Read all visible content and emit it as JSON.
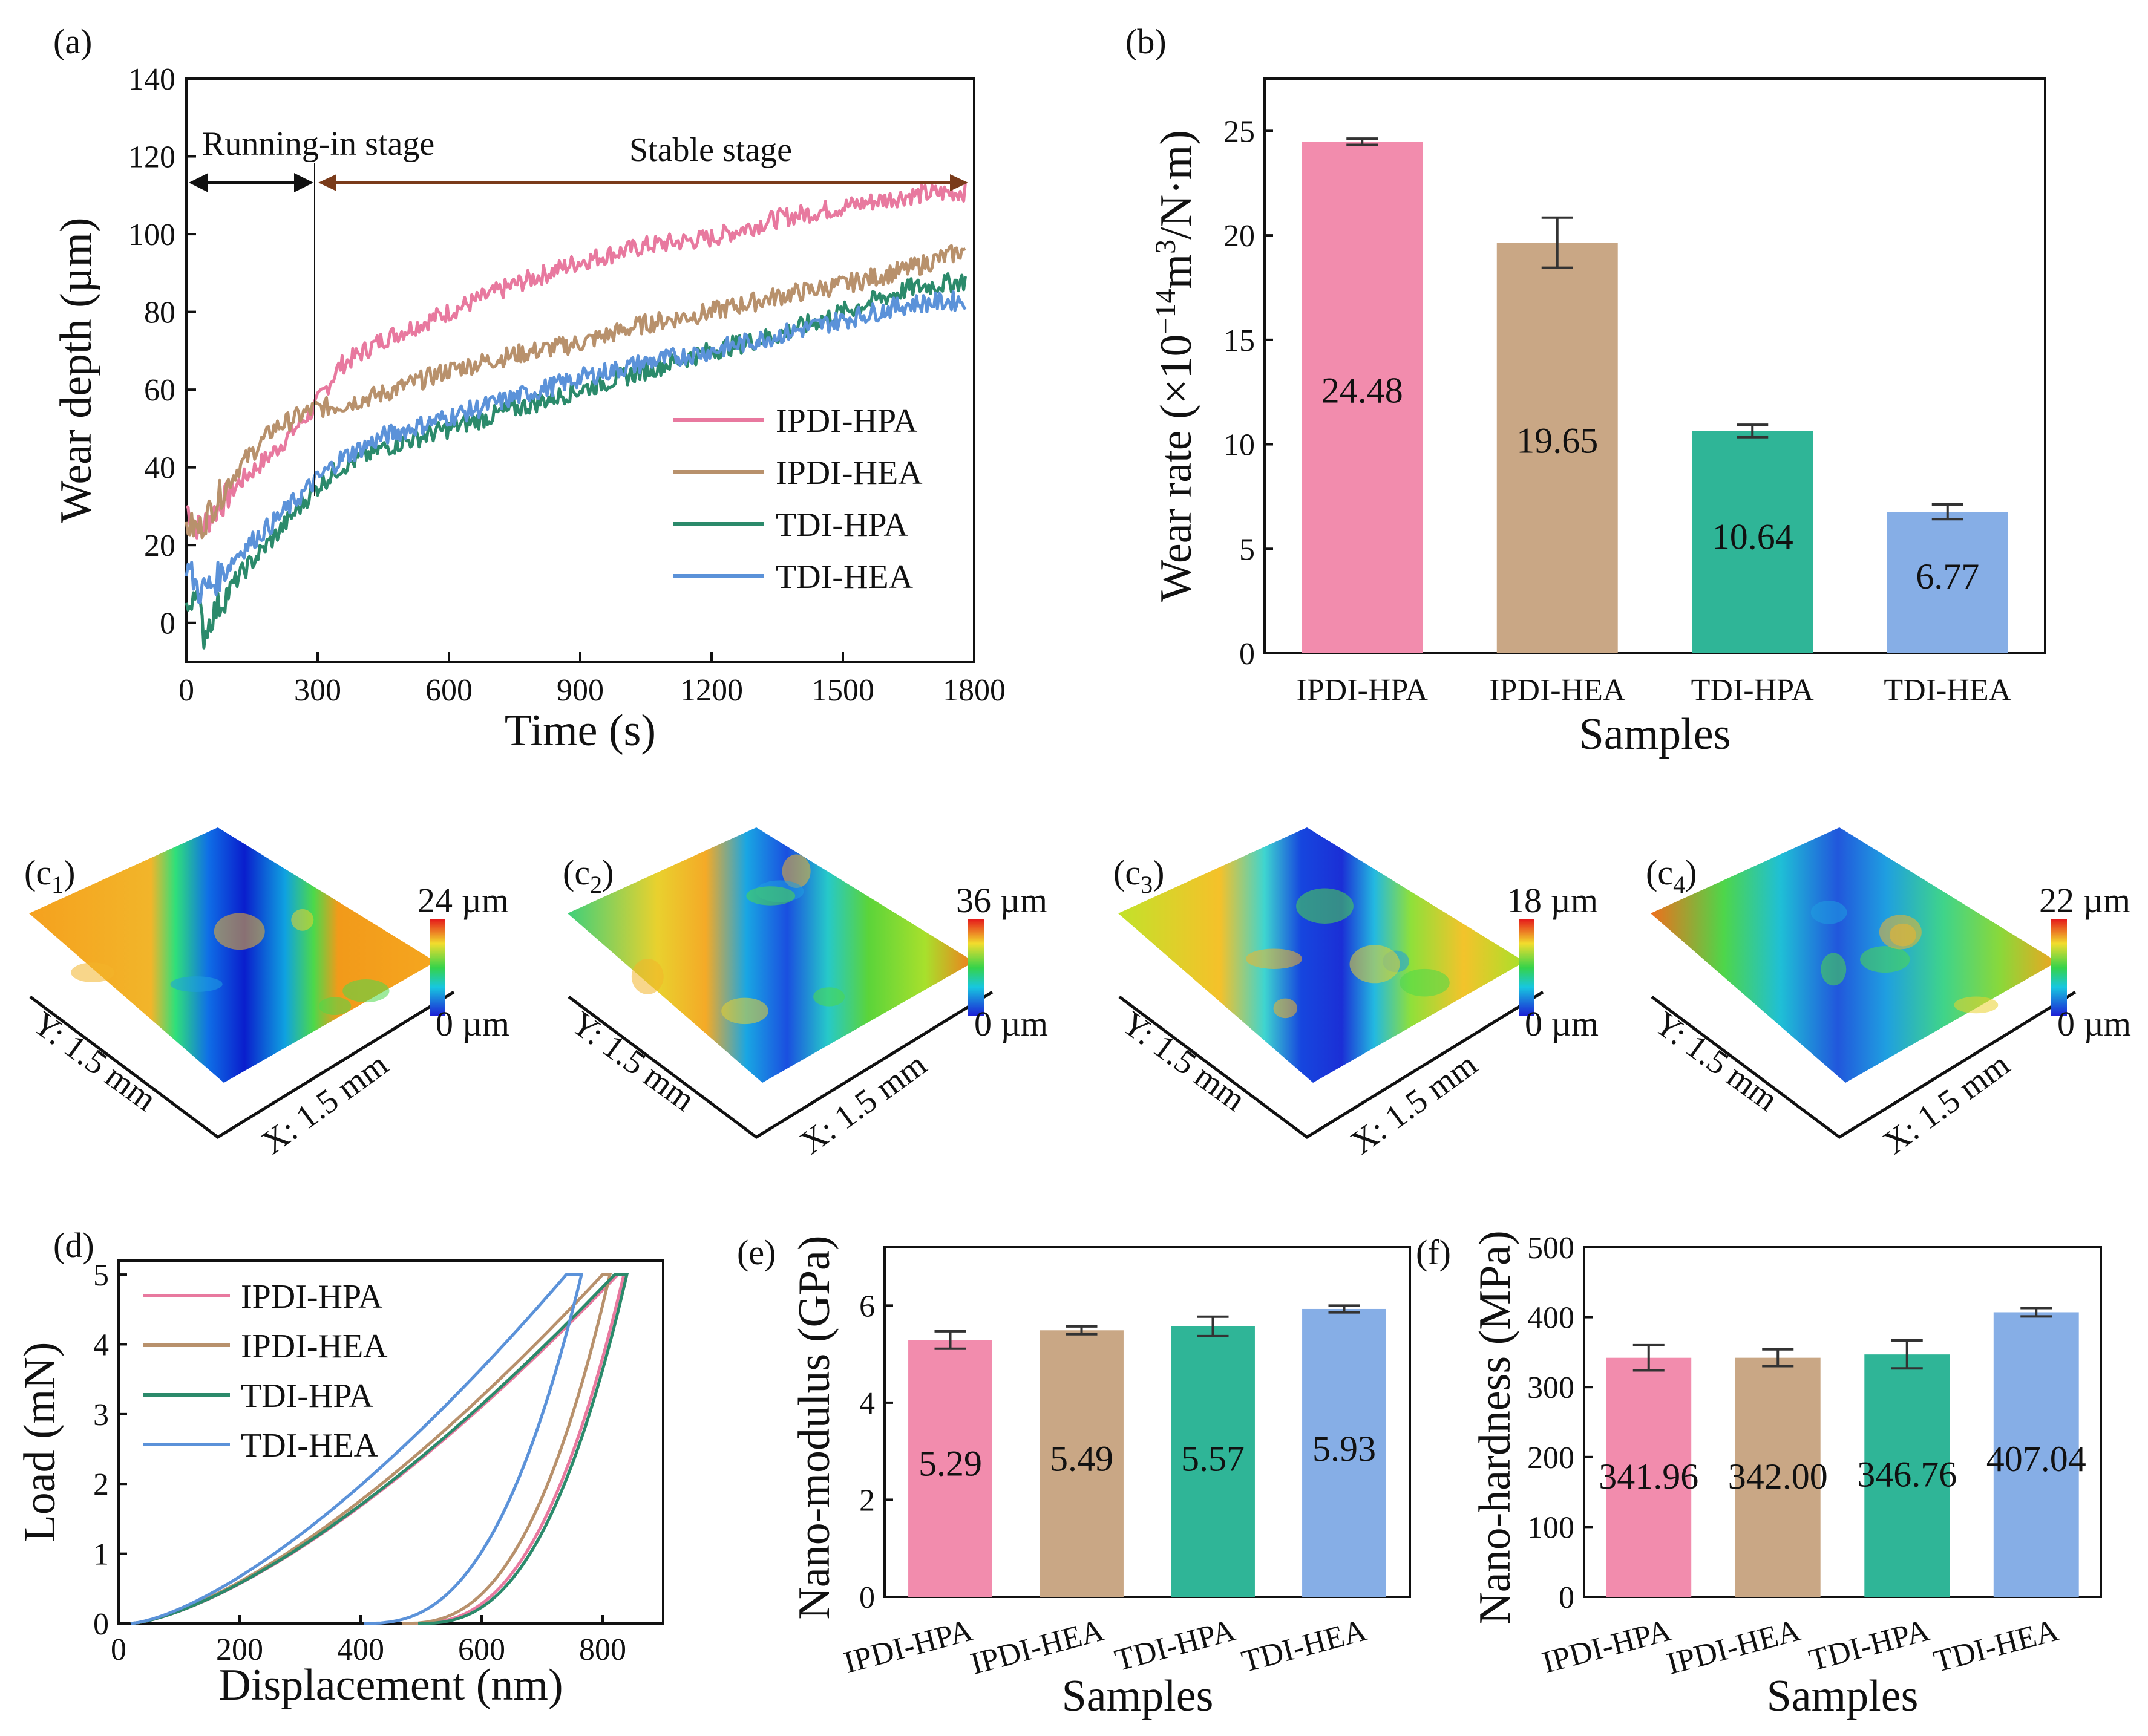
{
  "colors": {
    "IPDI-HPA": "#e8799f",
    "IPDI-HEA": "#b8916c",
    "TDI-HPA": "#2b8a6b",
    "TDI-HEA": "#5b92d9",
    "bar_IPDI-HPA": "#f28cad",
    "bar_IPDI-HEA": "#c9a785",
    "bar_TDI-HPA": "#2fb597",
    "bar_TDI-HEA": "#86aee6",
    "stage_running": "#111111",
    "stage_stable": "#7a3b1a"
  },
  "panels": {
    "a": {
      "label": "(a)"
    },
    "b": {
      "label": "(b)"
    },
    "c1": {
      "label": "(c",
      "sub": "1",
      "max": "24 µm",
      "min": "0 µm",
      "ylab": "Y: 1.5 mm",
      "xlab": "X: 1.5 mm"
    },
    "c2": {
      "label": "(c",
      "sub": "2",
      "max": "36 µm",
      "min": "0 µm",
      "ylab": "Y: 1.5 mm",
      "xlab": "X: 1.5 mm"
    },
    "c3": {
      "label": "(c",
      "sub": "3",
      "max": "18 µm",
      "min": "0 µm",
      "ylab": "Y: 1.5 mm",
      "xlab": "X: 1.5 mm"
    },
    "c4": {
      "label": "(c",
      "sub": "4",
      "max": "22 µm",
      "min": "0 µm",
      "ylab": "Y: 1.5 mm",
      "xlab": "X: 1.5 mm"
    },
    "d": {
      "label": "(d)"
    },
    "e": {
      "label": "(e)"
    },
    "f": {
      "label": "(f)"
    }
  },
  "chart_data": [
    {
      "id": "a",
      "type": "line",
      "xlabel": "Time (s)",
      "ylabel": "Wear depth (µm)",
      "xlim": [
        0,
        1800
      ],
      "ylim": [
        -10,
        140
      ],
      "xticks": [
        0,
        300,
        600,
        900,
        1200,
        1500,
        1800
      ],
      "yticks": [
        0,
        20,
        40,
        60,
        80,
        100,
        120,
        140
      ],
      "annotations": [
        "Running-in stage",
        "Stable stage"
      ],
      "stage_boundary_s": 290,
      "series": [
        {
          "name": "IPDI-HPA",
          "x": [
            0,
            30,
            60,
            120,
            200,
            290,
            350,
            450,
            600,
            750,
            900,
            1050,
            1200,
            1350,
            1500,
            1650,
            1780
          ],
          "y": [
            30,
            24,
            28,
            36,
            44,
            55,
            66,
            73,
            80,
            87,
            93,
            97,
            99,
            104,
            107,
            110,
            111
          ]
        },
        {
          "name": "IPDI-HEA",
          "x": [
            0,
            30,
            60,
            120,
            200,
            290,
            350,
            450,
            600,
            750,
            900,
            1050,
            1200,
            1350,
            1500,
            1650,
            1780
          ],
          "y": [
            25,
            24,
            30,
            40,
            50,
            55,
            56,
            59,
            65,
            69,
            72,
            77,
            80,
            84,
            87,
            91,
            96
          ]
        },
        {
          "name": "TDI-HPA",
          "x": [
            0,
            20,
            40,
            60,
            120,
            200,
            290,
            350,
            450,
            600,
            750,
            900,
            1050,
            1200,
            1350,
            1500,
            1650,
            1780
          ],
          "y": [
            2,
            10,
            -3,
            2,
            12,
            22,
            34,
            40,
            45,
            50,
            55,
            60,
            65,
            70,
            74,
            80,
            86,
            88
          ]
        },
        {
          "name": "TDI-HEA",
          "x": [
            0,
            30,
            60,
            120,
            200,
            290,
            350,
            450,
            600,
            750,
            900,
            1050,
            1200,
            1350,
            1500,
            1650,
            1780
          ],
          "y": [
            15,
            8,
            10,
            18,
            26,
            36,
            42,
            48,
            53,
            58,
            63,
            67,
            70,
            74,
            78,
            82,
            83
          ]
        }
      ]
    },
    {
      "id": "b",
      "type": "bar",
      "xlabel": "Samples",
      "ylabel": "Wear rate (×10",
      "ylabel_sup": "−14",
      "ylabel_tail": "m",
      "ylabel_sup2": "3",
      "ylabel_tail2": "/N·m)",
      "ylim": [
        0,
        27.5
      ],
      "yticks": [
        0,
        5,
        10,
        15,
        20,
        25
      ],
      "categories": [
        "IPDI-HPA",
        "IPDI-HEA",
        "TDI-HPA",
        "TDI-HEA"
      ],
      "values": [
        24.48,
        19.65,
        10.64,
        6.77
      ],
      "labels": [
        "24.48",
        "19.65",
        "10.64",
        "6.77"
      ],
      "errors": [
        0.15,
        1.2,
        0.3,
        0.35
      ]
    },
    {
      "id": "d",
      "type": "line",
      "xlabel": "Displacement (nm)",
      "ylabel": "Load (mN)",
      "xlim": [
        0,
        900
      ],
      "ylim": [
        0,
        5.2
      ],
      "xticks": [
        0,
        200,
        400,
        600,
        800
      ],
      "yticks": [
        0,
        1,
        2,
        3,
        4,
        5
      ],
      "series": [
        {
          "name": "IPDI-HPA",
          "max_disp": 825,
          "peak_end": 835,
          "residual": 485
        },
        {
          "name": "IPDI-HEA",
          "max_disp": 800,
          "peak_end": 812,
          "residual": 468
        },
        {
          "name": "TDI-HPA",
          "max_disp": 820,
          "peak_end": 840,
          "residual": 495
        },
        {
          "name": "TDI-HEA",
          "max_disp": 740,
          "peak_end": 765,
          "residual": 405
        }
      ]
    },
    {
      "id": "e",
      "type": "bar",
      "xlabel": "Samples",
      "ylabel": "Nano-modulus (GPa)",
      "ylim": [
        0,
        7.2
      ],
      "yticks": [
        0,
        2,
        4,
        6
      ],
      "categories": [
        "IPDI-HPA",
        "IPDI-HEA",
        "TDI-HPA",
        "TDI-HEA"
      ],
      "values": [
        5.29,
        5.49,
        5.57,
        5.93
      ],
      "labels": [
        "5.29",
        "5.49",
        "5.57",
        "5.93"
      ],
      "errors": [
        0.18,
        0.08,
        0.2,
        0.07
      ]
    },
    {
      "id": "f",
      "type": "bar",
      "xlabel": "Samples",
      "ylabel": "Nano-hardness (MPa)",
      "ylim": [
        0,
        500
      ],
      "yticks": [
        0,
        100,
        200,
        300,
        400,
        500
      ],
      "categories": [
        "IPDI-HPA",
        "IPDI-HEA",
        "TDI-HPA",
        "TDI-HEA"
      ],
      "values": [
        341.96,
        342.0,
        346.76,
        407.04
      ],
      "labels": [
        "341.96",
        "342.00",
        "346.76",
        "407.04"
      ],
      "errors": [
        18,
        12,
        20,
        6
      ]
    }
  ]
}
